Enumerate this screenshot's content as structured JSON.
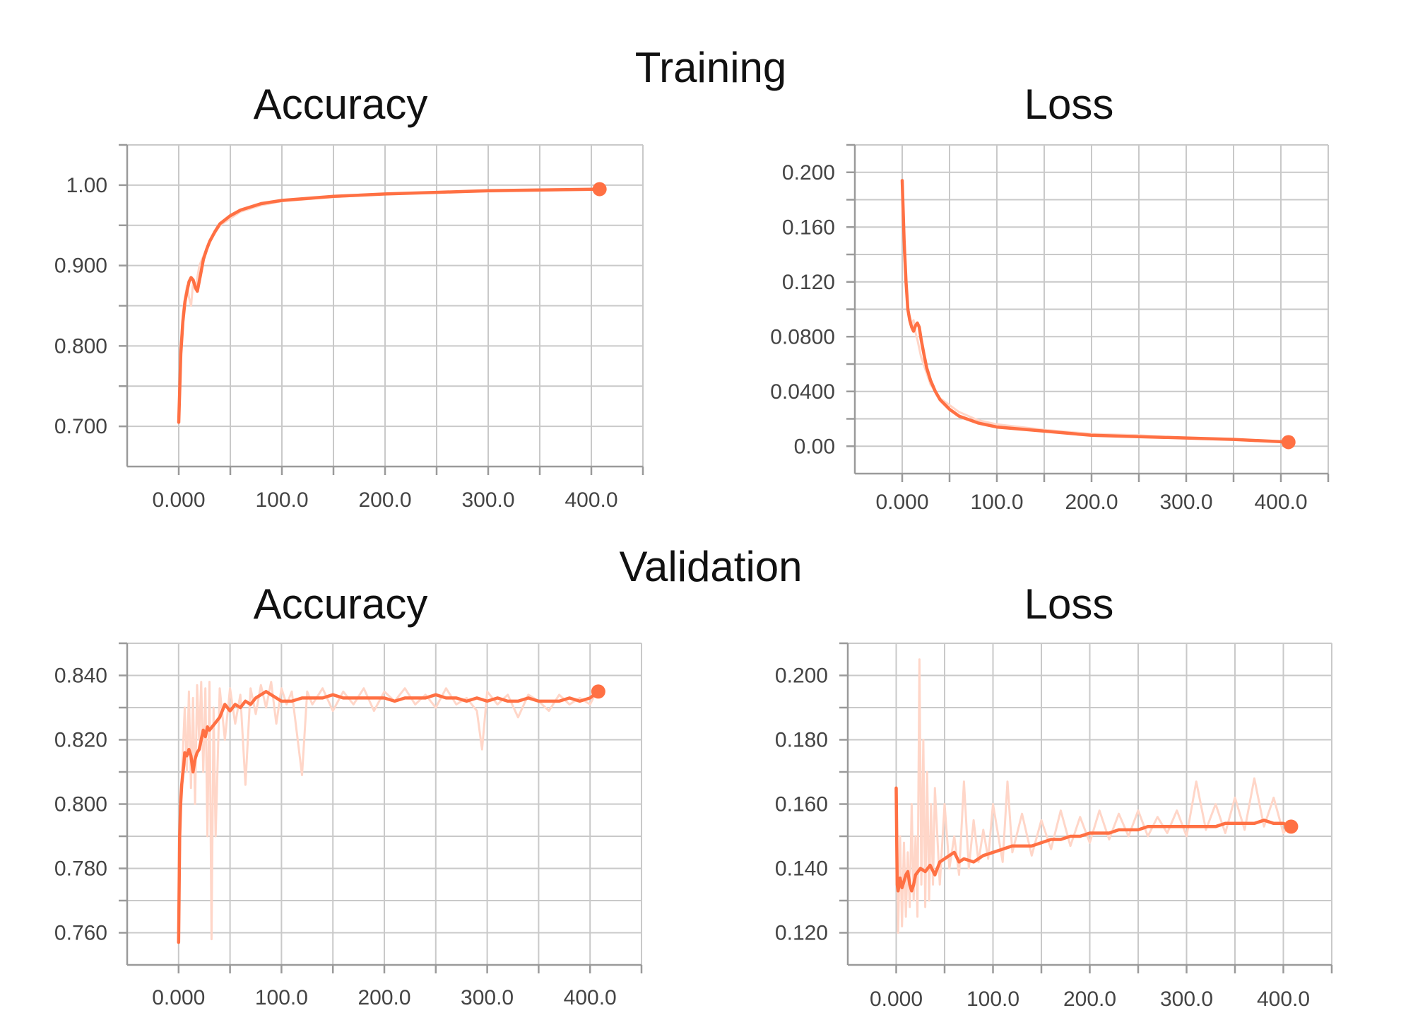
{
  "sections": {
    "training": "Training",
    "validation": "Validation"
  },
  "colors": {
    "accent": "#ff7043",
    "raw": "#ffd6c8",
    "grid": "#c9c9c9"
  },
  "chart_data": [
    {
      "id": "train-acc",
      "type": "line",
      "title": "Accuracy",
      "xticks": [
        "0.000",
        "100.0",
        "200.0",
        "300.0",
        "400.0"
      ],
      "yticks": [
        "1.00",
        "0.900",
        "0.800",
        "0.700"
      ],
      "ytick_values": [
        1.0,
        0.9,
        0.8,
        0.7
      ],
      "xlim": [
        -50,
        450
      ],
      "ylim": [
        0.65,
        1.05
      ],
      "series": [
        {
          "style": "raw",
          "x": [
            0,
            2,
            4,
            6,
            8,
            10,
            12,
            14,
            16,
            20,
            30,
            40,
            60,
            80,
            100,
            150,
            200,
            250,
            300,
            350,
            408
          ],
          "y": [
            0.705,
            0.8,
            0.84,
            0.86,
            0.875,
            0.86,
            0.85,
            0.88,
            0.87,
            0.9,
            0.93,
            0.95,
            0.967,
            0.975,
            0.98,
            0.985,
            0.989,
            0.991,
            0.992,
            0.993,
            0.995
          ]
        },
        {
          "style": "smoothed",
          "x": [
            0,
            2,
            4,
            6,
            8,
            10,
            12,
            14,
            16,
            18,
            21,
            24,
            27,
            30,
            35,
            40,
            50,
            60,
            80,
            100,
            150,
            200,
            250,
            300,
            350,
            408
          ],
          "y": [
            0.705,
            0.79,
            0.83,
            0.855,
            0.868,
            0.88,
            0.885,
            0.882,
            0.873,
            0.868,
            0.888,
            0.908,
            0.92,
            0.93,
            0.942,
            0.952,
            0.962,
            0.969,
            0.977,
            0.981,
            0.986,
            0.989,
            0.991,
            0.993,
            0.994,
            0.995
          ]
        }
      ]
    },
    {
      "id": "train-loss",
      "type": "line",
      "title": "Loss",
      "xticks": [
        "0.000",
        "100.0",
        "200.0",
        "300.0",
        "400.0"
      ],
      "yticks": [
        "0.200",
        "0.160",
        "0.120",
        "0.0800",
        "0.0400",
        "0.00"
      ],
      "ytick_values": [
        0.2,
        0.16,
        0.12,
        0.08,
        0.04,
        0.0
      ],
      "xlim": [
        -50,
        450
      ],
      "ylim": [
        -0.02,
        0.22
      ],
      "series": [
        {
          "style": "raw",
          "x": [
            0,
            2,
            4,
            6,
            8,
            10,
            12,
            14,
            16,
            20,
            30,
            40,
            60,
            80,
            100,
            150,
            200,
            250,
            300,
            350,
            408
          ],
          "y": [
            0.195,
            0.14,
            0.12,
            0.1,
            0.095,
            0.09,
            0.092,
            0.083,
            0.078,
            0.065,
            0.045,
            0.035,
            0.025,
            0.019,
            0.016,
            0.012,
            0.009,
            0.008,
            0.006,
            0.005,
            0.003
          ]
        },
        {
          "style": "smoothed",
          "x": [
            0,
            2,
            4,
            6,
            8,
            10,
            12,
            14,
            16,
            18,
            20,
            23,
            26,
            30,
            35,
            40,
            50,
            60,
            80,
            100,
            150,
            200,
            250,
            300,
            350,
            408
          ],
          "y": [
            0.194,
            0.15,
            0.12,
            0.1,
            0.092,
            0.087,
            0.084,
            0.088,
            0.09,
            0.087,
            0.078,
            0.067,
            0.057,
            0.048,
            0.04,
            0.034,
            0.027,
            0.022,
            0.017,
            0.014,
            0.011,
            0.008,
            0.007,
            0.006,
            0.005,
            0.003
          ]
        }
      ]
    },
    {
      "id": "val-acc",
      "type": "line",
      "title": "Accuracy",
      "xticks": [
        "0.000",
        "100.0",
        "200.0",
        "300.0",
        "400.0"
      ],
      "yticks": [
        "0.840",
        "0.820",
        "0.800",
        "0.780",
        "0.760"
      ],
      "ytick_values": [
        0.84,
        0.82,
        0.8,
        0.78,
        0.76
      ],
      "xlim": [
        -50,
        450
      ],
      "ylim": [
        0.75,
        0.85
      ],
      "series": [
        {
          "style": "raw",
          "x": [
            0,
            2,
            4,
            6,
            8,
            10,
            12,
            14,
            16,
            18,
            20,
            22,
            24,
            26,
            28,
            30,
            32,
            34,
            36,
            40,
            45,
            50,
            55,
            60,
            65,
            70,
            75,
            80,
            85,
            90,
            95,
            100,
            105,
            110,
            120,
            125,
            130,
            140,
            150,
            160,
            170,
            180,
            190,
            200,
            210,
            220,
            230,
            240,
            250,
            260,
            270,
            280,
            290,
            295,
            300,
            310,
            320,
            330,
            340,
            350,
            360,
            370,
            380,
            390,
            400,
            408
          ],
          "y": [
            0.757,
            0.8,
            0.815,
            0.83,
            0.81,
            0.835,
            0.805,
            0.833,
            0.8,
            0.837,
            0.82,
            0.838,
            0.81,
            0.836,
            0.79,
            0.838,
            0.758,
            0.83,
            0.79,
            0.836,
            0.82,
            0.836,
            0.825,
            0.834,
            0.806,
            0.836,
            0.828,
            0.837,
            0.83,
            0.838,
            0.825,
            0.836,
            0.831,
            0.835,
            0.809,
            0.835,
            0.831,
            0.836,
            0.829,
            0.835,
            0.831,
            0.836,
            0.829,
            0.835,
            0.832,
            0.836,
            0.831,
            0.834,
            0.83,
            0.836,
            0.831,
            0.833,
            0.829,
            0.817,
            0.835,
            0.831,
            0.834,
            0.827,
            0.834,
            0.832,
            0.829,
            0.834,
            0.831,
            0.833,
            0.831,
            0.836
          ]
        },
        {
          "style": "smoothed",
          "x": [
            0,
            1,
            2,
            3,
            4,
            5,
            6,
            8,
            10,
            12,
            14,
            16,
            18,
            20,
            22,
            24,
            26,
            28,
            30,
            35,
            40,
            45,
            50,
            55,
            60,
            65,
            70,
            75,
            80,
            85,
            90,
            95,
            100,
            110,
            120,
            130,
            140,
            150,
            160,
            170,
            180,
            190,
            200,
            210,
            220,
            230,
            240,
            250,
            260,
            270,
            280,
            290,
            300,
            310,
            320,
            330,
            340,
            350,
            360,
            370,
            380,
            390,
            400,
            408
          ],
          "y": [
            0.757,
            0.79,
            0.8,
            0.806,
            0.809,
            0.812,
            0.816,
            0.815,
            0.817,
            0.815,
            0.81,
            0.814,
            0.816,
            0.817,
            0.82,
            0.823,
            0.821,
            0.824,
            0.823,
            0.825,
            0.827,
            0.831,
            0.829,
            0.831,
            0.83,
            0.832,
            0.831,
            0.833,
            0.834,
            0.835,
            0.834,
            0.833,
            0.832,
            0.832,
            0.833,
            0.833,
            0.833,
            0.834,
            0.833,
            0.833,
            0.833,
            0.833,
            0.833,
            0.832,
            0.833,
            0.833,
            0.833,
            0.834,
            0.833,
            0.833,
            0.832,
            0.833,
            0.832,
            0.833,
            0.832,
            0.832,
            0.833,
            0.832,
            0.832,
            0.832,
            0.833,
            0.832,
            0.833,
            0.835
          ]
        }
      ]
    },
    {
      "id": "val-loss",
      "type": "line",
      "title": "Loss",
      "xticks": [
        "0.000",
        "100.0",
        "200.0",
        "300.0",
        "400.0"
      ],
      "yticks": [
        "0.200",
        "0.180",
        "0.160",
        "0.140",
        "0.120"
      ],
      "ytick_values": [
        0.2,
        0.18,
        0.16,
        0.14,
        0.12
      ],
      "xlim": [
        -50,
        450
      ],
      "ylim": [
        0.11,
        0.21
      ],
      "series": [
        {
          "style": "raw",
          "x": [
            0,
            2,
            4,
            6,
            8,
            10,
            12,
            14,
            16,
            18,
            20,
            22,
            24,
            26,
            28,
            30,
            32,
            34,
            36,
            38,
            40,
            45,
            50,
            55,
            60,
            65,
            70,
            75,
            80,
            85,
            90,
            95,
            100,
            110,
            115,
            120,
            130,
            140,
            150,
            160,
            170,
            180,
            190,
            200,
            210,
            220,
            230,
            240,
            250,
            260,
            270,
            280,
            290,
            300,
            310,
            320,
            330,
            340,
            350,
            360,
            370,
            380,
            390,
            400,
            408
          ],
          "y": [
            0.165,
            0.12,
            0.15,
            0.122,
            0.148,
            0.125,
            0.145,
            0.128,
            0.16,
            0.13,
            0.15,
            0.125,
            0.205,
            0.135,
            0.18,
            0.128,
            0.17,
            0.13,
            0.16,
            0.135,
            0.165,
            0.135,
            0.16,
            0.14,
            0.15,
            0.138,
            0.167,
            0.14,
            0.155,
            0.142,
            0.152,
            0.143,
            0.16,
            0.142,
            0.167,
            0.145,
            0.157,
            0.144,
            0.155,
            0.146,
            0.158,
            0.147,
            0.156,
            0.148,
            0.158,
            0.149,
            0.157,
            0.15,
            0.158,
            0.15,
            0.156,
            0.151,
            0.158,
            0.15,
            0.167,
            0.152,
            0.16,
            0.151,
            0.162,
            0.152,
            0.168,
            0.153,
            0.162,
            0.151,
            0.154
          ]
        },
        {
          "style": "smoothed",
          "x": [
            0,
            1,
            2,
            4,
            6,
            8,
            10,
            12,
            14,
            16,
            18,
            20,
            25,
            30,
            35,
            40,
            45,
            50,
            55,
            60,
            65,
            70,
            80,
            90,
            100,
            110,
            120,
            130,
            140,
            150,
            160,
            170,
            180,
            190,
            200,
            210,
            220,
            230,
            240,
            250,
            260,
            270,
            280,
            290,
            300,
            310,
            320,
            330,
            340,
            350,
            360,
            370,
            380,
            390,
            400,
            408
          ],
          "y": [
            0.165,
            0.135,
            0.133,
            0.137,
            0.134,
            0.136,
            0.138,
            0.139,
            0.135,
            0.133,
            0.135,
            0.138,
            0.14,
            0.139,
            0.141,
            0.138,
            0.142,
            0.143,
            0.144,
            0.145,
            0.142,
            0.143,
            0.142,
            0.144,
            0.145,
            0.146,
            0.147,
            0.147,
            0.147,
            0.148,
            0.149,
            0.149,
            0.15,
            0.15,
            0.151,
            0.151,
            0.151,
            0.152,
            0.152,
            0.152,
            0.153,
            0.153,
            0.153,
            0.153,
            0.153,
            0.153,
            0.153,
            0.153,
            0.154,
            0.154,
            0.154,
            0.154,
            0.155,
            0.154,
            0.154,
            0.153
          ]
        }
      ]
    }
  ]
}
